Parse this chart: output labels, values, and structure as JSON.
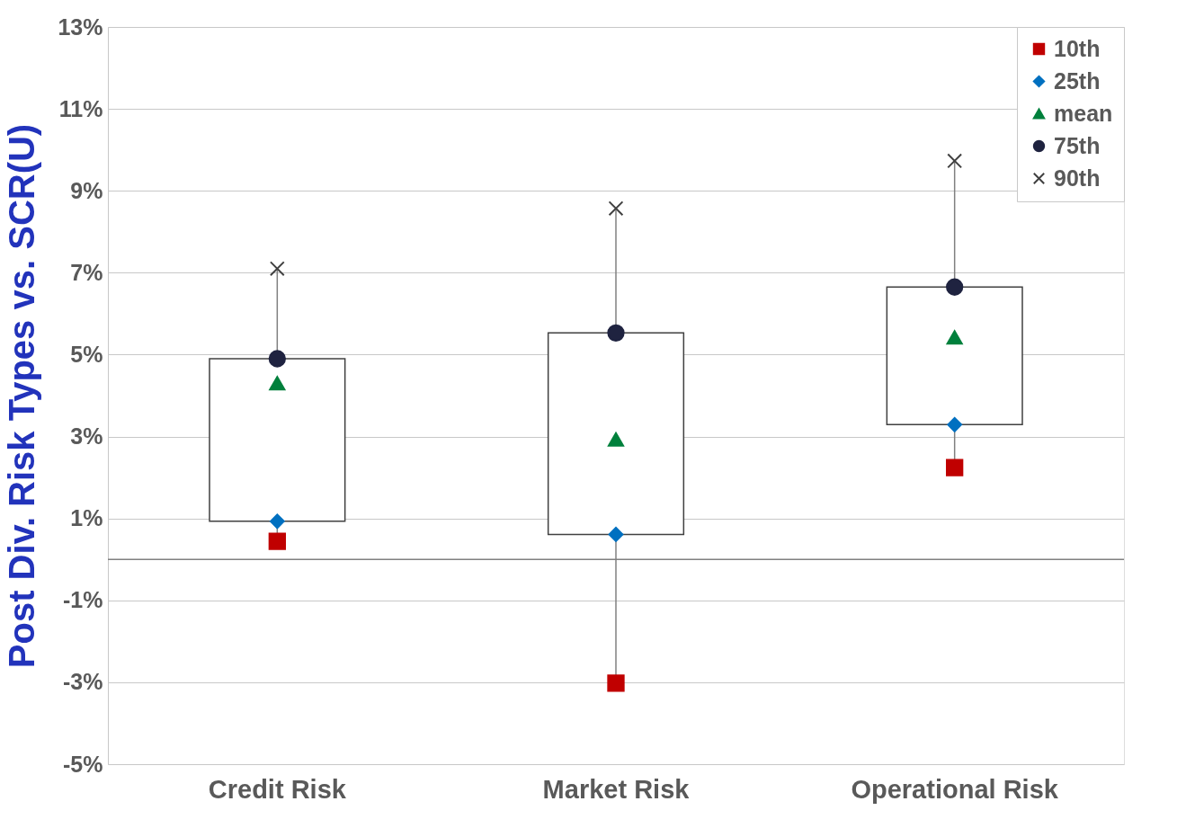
{
  "chart_data": {
    "type": "box",
    "ylabel": "Post Div. Risk Types vs. SCR(U)",
    "categories": [
      "Credit Risk",
      "Market Risk",
      "Operational Risk"
    ],
    "boxes": [
      {
        "low": 0.44,
        "q1": 0.93,
        "q3": 4.9,
        "high": 7.1
      },
      {
        "low": -3.02,
        "q1": 0.61,
        "q3": 5.53,
        "high": 8.57
      },
      {
        "low": 2.24,
        "q1": 3.29,
        "q3": 6.65,
        "high": 9.73
      }
    ],
    "series": [
      {
        "name": "10th",
        "type": "scatter",
        "color": "#c00000",
        "marker": "square",
        "x": [
          "Credit Risk",
          "Market Risk",
          "Operational Risk"
        ],
        "values": [
          0.44,
          -3.02,
          2.24
        ]
      },
      {
        "name": "25th",
        "type": "scatter",
        "color": "#0070c0",
        "marker": "diamond",
        "x": [
          "Credit Risk",
          "Market Risk",
          "Operational Risk"
        ],
        "values": [
          0.93,
          0.61,
          3.29
        ]
      },
      {
        "name": "mean",
        "type": "scatter",
        "color": "#00803c",
        "marker": "triangle",
        "x": [
          "Credit Risk",
          "Market Risk",
          "Operational Risk"
        ],
        "values": [
          4.3,
          2.93,
          5.42
        ]
      },
      {
        "name": "75th",
        "type": "scatter",
        "color": "#1f2340",
        "marker": "circle",
        "x": [
          "Credit Risk",
          "Market Risk",
          "Operational Risk"
        ],
        "values": [
          4.9,
          5.53,
          6.65
        ]
      },
      {
        "name": "90th",
        "type": "scatter",
        "color": "#404040",
        "marker": "cross",
        "x": [
          "Credit Risk",
          "Market Risk",
          "Operational Risk"
        ],
        "values": [
          7.1,
          8.57,
          9.73
        ]
      }
    ],
    "ylim": [
      -5,
      13
    ],
    "yticks": [
      {
        "value": -5,
        "label": "-5%"
      },
      {
        "value": -3,
        "label": "-3%"
      },
      {
        "value": -1,
        "label": "-1%"
      },
      {
        "value": 1,
        "label": "1%"
      },
      {
        "value": 3,
        "label": "3%"
      },
      {
        "value": 5,
        "label": "5%"
      },
      {
        "value": 7,
        "label": "7%"
      },
      {
        "value": 9,
        "label": "9%"
      },
      {
        "value": 11,
        "label": "11%"
      },
      {
        "value": 13,
        "label": "13%"
      }
    ],
    "ref_lines": [
      {
        "axis": "y",
        "value": 0,
        "color": "#808080"
      }
    ],
    "grid": "y",
    "legend": "top right"
  }
}
